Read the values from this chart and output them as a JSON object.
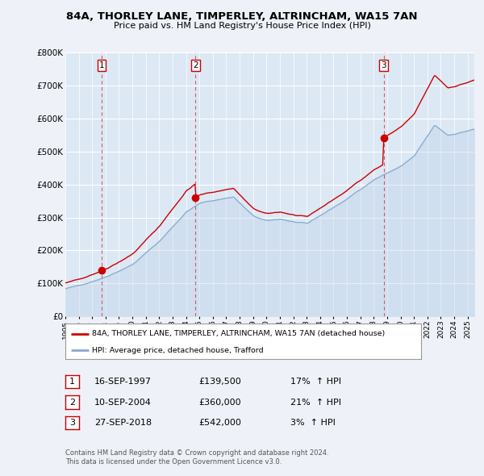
{
  "title": "84A, THORLEY LANE, TIMPERLEY, ALTRINCHAM, WA15 7AN",
  "subtitle": "Price paid vs. HM Land Registry's House Price Index (HPI)",
  "legend_label_red": "84A, THORLEY LANE, TIMPERLEY, ALTRINCHAM, WA15 7AN (detached house)",
  "legend_label_blue": "HPI: Average price, detached house, Trafford",
  "transactions": [
    {
      "num": 1,
      "date": "16-SEP-1997",
      "price": 139500,
      "pct": "17%",
      "dir": "↑"
    },
    {
      "num": 2,
      "date": "10-SEP-2004",
      "price": 360000,
      "pct": "21%",
      "dir": "↑"
    },
    {
      "num": 3,
      "date": "27-SEP-2018",
      "price": 542000,
      "pct": "3%",
      "dir": "↑"
    }
  ],
  "footnote1": "Contains HM Land Registry data © Crown copyright and database right 2024.",
  "footnote2": "This data is licensed under the Open Government Licence v3.0.",
  "ylim": [
    0,
    800000
  ],
  "yticks": [
    0,
    100000,
    200000,
    300000,
    400000,
    500000,
    600000,
    700000,
    800000
  ],
  "ytick_labels": [
    "£0",
    "£100K",
    "£200K",
    "£300K",
    "£400K",
    "£500K",
    "£600K",
    "£700K",
    "£800K"
  ],
  "x_start_year": 1995.0,
  "x_end_year": 2025.5,
  "bg_color": "#eef2f8",
  "plot_bg_color": "#dce8f4",
  "red_color": "#cc0000",
  "blue_color": "#88aacc",
  "blue_fill_color": "#bbcfe8",
  "transaction_years": [
    1997.71,
    2004.71,
    2018.74
  ],
  "transaction_prices": [
    139500,
    360000,
    542000
  ]
}
